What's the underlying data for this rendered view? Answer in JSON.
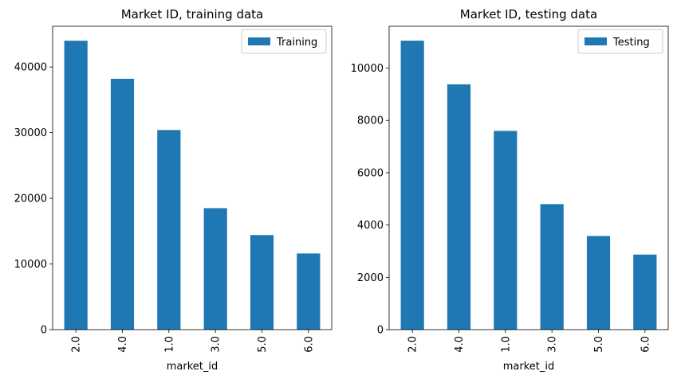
{
  "chart_data": [
    {
      "type": "bar",
      "title": "Market  ID, training data",
      "xlabel": "market_id",
      "ylabel": "",
      "categories": [
        "2.0",
        "4.0",
        "1.0",
        "3.0",
        "5.0",
        "6.0"
      ],
      "series": [
        {
          "name": "Training",
          "values": [
            44000,
            38200,
            30400,
            18500,
            14400,
            11600
          ],
          "color": "#1f77b4"
        }
      ],
      "ylim": [
        0,
        46200
      ],
      "yticks": [
        0,
        10000,
        20000,
        30000,
        40000
      ],
      "ytick_labels": [
        "0",
        "10000",
        "20000",
        "30000",
        "40000"
      ],
      "legend": "top-right",
      "grid": false
    },
    {
      "type": "bar",
      "title": "Market  ID, testing data",
      "xlabel": "market_id",
      "ylabel": "",
      "categories": [
        "2.0",
        "4.0",
        "1.0",
        "3.0",
        "5.0",
        "6.0"
      ],
      "series": [
        {
          "name": "Testing",
          "values": [
            11050,
            9380,
            7600,
            4800,
            3580,
            2870
          ],
          "color": "#1f77b4"
        }
      ],
      "ylim": [
        0,
        11600
      ],
      "yticks": [
        0,
        2000,
        4000,
        6000,
        8000,
        10000
      ],
      "ytick_labels": [
        "0",
        "2000",
        "4000",
        "6000",
        "8000",
        "10000"
      ],
      "legend": "top-right",
      "grid": false
    }
  ]
}
